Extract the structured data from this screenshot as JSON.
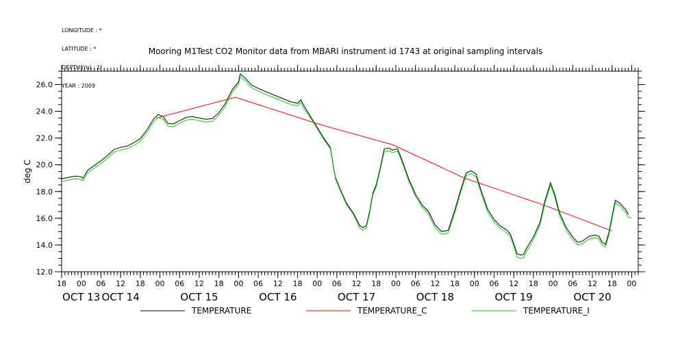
{
  "header": {
    "meta_lines": [
      "LONGITUDE : *",
      "LATITUDE : *",
      "DEPTH (m) : 1",
      "YEAR : 2009"
    ],
    "title": "Mooring M1Test CO2 Monitor data from MBARI instrument id 1743 at original sampling intervals"
  },
  "chart_data": {
    "type": "line",
    "title": "Mooring M1Test CO2 Monitor data from MBARI instrument id 1743 at original sampling intervals",
    "xlabel": "",
    "ylabel": "deg C",
    "ylim": [
      12.0,
      27.0
    ],
    "yticks": [
      12.0,
      14.0,
      16.0,
      18.0,
      20.0,
      22.0,
      24.0,
      26.0
    ],
    "ytick_labels": [
      "12.0",
      "14.0",
      "16.0",
      "18.0",
      "20.0",
      "22.0",
      "24.0",
      "26.0"
    ],
    "xlim_hours": [
      -6,
      170
    ],
    "x_units": "hours since OCT 13 2009 00:00",
    "hour_ticks": [
      {
        "h": -6,
        "label": "18"
      },
      {
        "h": 0,
        "label": "00"
      },
      {
        "h": 6,
        "label": "06"
      },
      {
        "h": 12,
        "label": "12"
      },
      {
        "h": 18,
        "label": "18"
      },
      {
        "h": 24,
        "label": "00"
      },
      {
        "h": 30,
        "label": "06"
      },
      {
        "h": 36,
        "label": "12"
      },
      {
        "h": 42,
        "label": "18"
      },
      {
        "h": 48,
        "label": "00"
      },
      {
        "h": 54,
        "label": "06"
      },
      {
        "h": 60,
        "label": "12"
      },
      {
        "h": 66,
        "label": "18"
      },
      {
        "h": 72,
        "label": "00"
      },
      {
        "h": 78,
        "label": "06"
      },
      {
        "h": 84,
        "label": "12"
      },
      {
        "h": 90,
        "label": "18"
      },
      {
        "h": 96,
        "label": "00"
      },
      {
        "h": 102,
        "label": "06"
      },
      {
        "h": 108,
        "label": "12"
      },
      {
        "h": 114,
        "label": "18"
      },
      {
        "h": 120,
        "label": "00"
      },
      {
        "h": 126,
        "label": "06"
      },
      {
        "h": 132,
        "label": "12"
      },
      {
        "h": 138,
        "label": "18"
      },
      {
        "h": 144,
        "label": "00"
      },
      {
        "h": 150,
        "label": "06"
      },
      {
        "h": 156,
        "label": "12"
      },
      {
        "h": 162,
        "label": "18"
      },
      {
        "h": 168,
        "label": "00"
      }
    ],
    "day_labels": [
      {
        "h": 0,
        "label": "OCT 13"
      },
      {
        "h": 12,
        "label": "OCT 14"
      },
      {
        "h": 36,
        "label": "OCT 15"
      },
      {
        "h": 60,
        "label": "OCT 16"
      },
      {
        "h": 84,
        "label": "OCT 17"
      },
      {
        "h": 108,
        "label": "OCT 18"
      },
      {
        "h": 132,
        "label": "OCT 19"
      },
      {
        "h": 156,
        "label": "OCT 20"
      }
    ],
    "series": [
      {
        "name": "TEMPERATURE",
        "color": "#000000",
        "points": [
          [
            -6,
            18.95
          ],
          [
            -4,
            19.05
          ],
          [
            -2,
            19.15
          ],
          [
            0,
            19.1
          ],
          [
            0.5,
            19.0
          ],
          [
            2,
            19.6
          ],
          [
            4,
            19.95
          ],
          [
            6,
            20.3
          ],
          [
            8,
            20.7
          ],
          [
            10,
            21.15
          ],
          [
            12,
            21.3
          ],
          [
            14,
            21.4
          ],
          [
            16,
            21.65
          ],
          [
            18,
            21.95
          ],
          [
            20,
            22.6
          ],
          [
            22,
            23.4
          ],
          [
            23.5,
            23.75
          ],
          [
            25,
            23.6
          ],
          [
            26.5,
            23.1
          ],
          [
            28,
            23.05
          ],
          [
            30,
            23.3
          ],
          [
            32,
            23.55
          ],
          [
            34,
            23.6
          ],
          [
            36,
            23.5
          ],
          [
            38,
            23.4
          ],
          [
            40,
            23.45
          ],
          [
            42,
            23.9
          ],
          [
            44,
            24.6
          ],
          [
            46,
            25.6
          ],
          [
            48,
            26.2
          ],
          [
            48.5,
            26.8
          ],
          [
            50,
            26.5
          ],
          [
            52,
            25.95
          ],
          [
            55,
            25.6
          ],
          [
            60,
            25.1
          ],
          [
            64,
            24.7
          ],
          [
            66,
            24.6
          ],
          [
            67,
            24.85
          ],
          [
            68,
            24.4
          ],
          [
            70,
            23.6
          ],
          [
            72,
            22.8
          ],
          [
            74,
            22.0
          ],
          [
            76,
            21.3
          ],
          [
            77.5,
            19.1
          ],
          [
            79,
            18.2
          ],
          [
            81,
            17.1
          ],
          [
            83,
            16.4
          ],
          [
            85,
            15.45
          ],
          [
            86,
            15.3
          ],
          [
            87,
            15.45
          ],
          [
            88,
            16.5
          ],
          [
            89,
            17.9
          ],
          [
            90,
            18.5
          ],
          [
            91,
            19.5
          ],
          [
            92.5,
            21.2
          ],
          [
            94,
            21.25
          ],
          [
            95,
            21.1
          ],
          [
            96.5,
            21.2
          ],
          [
            98,
            20.3
          ],
          [
            100,
            18.9
          ],
          [
            102,
            17.8
          ],
          [
            104,
            17.0
          ],
          [
            106,
            16.5
          ],
          [
            108,
            15.5
          ],
          [
            110,
            15.0
          ],
          [
            112,
            15.1
          ],
          [
            114,
            16.6
          ],
          [
            116,
            18.3
          ],
          [
            117.5,
            19.4
          ],
          [
            119,
            19.55
          ],
          [
            120.5,
            19.3
          ],
          [
            122,
            18.1
          ],
          [
            124,
            16.7
          ],
          [
            126,
            15.9
          ],
          [
            128,
            15.4
          ],
          [
            130,
            15.1
          ],
          [
            131,
            14.8
          ],
          [
            132,
            14.1
          ],
          [
            133,
            13.35
          ],
          [
            134,
            13.25
          ],
          [
            135,
            13.3
          ],
          [
            136,
            13.8
          ],
          [
            138,
            14.6
          ],
          [
            140,
            15.7
          ],
          [
            141.5,
            17.3
          ],
          [
            143.2,
            18.65
          ],
          [
            144.5,
            17.8
          ],
          [
            146,
            16.4
          ],
          [
            148,
            15.3
          ],
          [
            150,
            14.6
          ],
          [
            151.5,
            14.2
          ],
          [
            153,
            14.3
          ],
          [
            155,
            14.65
          ],
          [
            157,
            14.75
          ],
          [
            158,
            14.65
          ],
          [
            159,
            14.2
          ],
          [
            160,
            14.05
          ],
          [
            161,
            14.9
          ],
          [
            163,
            17.35
          ],
          [
            164.5,
            17.1
          ],
          [
            166,
            16.7
          ],
          [
            167,
            16.3
          ]
        ]
      },
      {
        "name": "TEMPERATURE_C",
        "color": "#ff0000",
        "points": [
          [
            23,
            23.5
          ],
          [
            47,
            25.05
          ],
          [
            73,
            23.0
          ],
          [
            95,
            21.5
          ],
          [
            117,
            19.0
          ],
          [
            141,
            17.0
          ],
          [
            162,
            15.05
          ]
        ]
      },
      {
        "name": "TEMPERATURE_I",
        "color": "#00dd00",
        "points": [
          [
            -6,
            18.75
          ],
          [
            -4,
            18.85
          ],
          [
            -2,
            18.95
          ],
          [
            0,
            18.9
          ],
          [
            0.5,
            18.8
          ],
          [
            2,
            19.4
          ],
          [
            4,
            19.75
          ],
          [
            6,
            20.1
          ],
          [
            8,
            20.5
          ],
          [
            10,
            20.95
          ],
          [
            12,
            21.1
          ],
          [
            14,
            21.2
          ],
          [
            16,
            21.45
          ],
          [
            18,
            21.75
          ],
          [
            20,
            22.4
          ],
          [
            22,
            23.2
          ],
          [
            23.5,
            23.55
          ],
          [
            25,
            23.4
          ],
          [
            26.5,
            22.9
          ],
          [
            28,
            22.85
          ],
          [
            30,
            23.1
          ],
          [
            32,
            23.35
          ],
          [
            34,
            23.4
          ],
          [
            36,
            23.3
          ],
          [
            38,
            23.2
          ],
          [
            40,
            23.25
          ],
          [
            42,
            23.7
          ],
          [
            44,
            24.4
          ],
          [
            46,
            25.4
          ],
          [
            48,
            26.0
          ],
          [
            48.5,
            26.6
          ],
          [
            50,
            26.3
          ],
          [
            52,
            25.75
          ],
          [
            55,
            25.4
          ],
          [
            60,
            24.9
          ],
          [
            64,
            24.5
          ],
          [
            66,
            24.4
          ],
          [
            67,
            24.65
          ],
          [
            68,
            24.2
          ],
          [
            70,
            23.5
          ],
          [
            72,
            22.7
          ],
          [
            74,
            21.9
          ],
          [
            76,
            21.2
          ],
          [
            77.5,
            19.0
          ],
          [
            79,
            18.1
          ],
          [
            81,
            17.0
          ],
          [
            83,
            16.3
          ],
          [
            85,
            15.25
          ],
          [
            86,
            15.1
          ],
          [
            87,
            15.3
          ],
          [
            88,
            16.35
          ],
          [
            89,
            17.75
          ],
          [
            90,
            18.35
          ],
          [
            91,
            19.35
          ],
          [
            92.5,
            21.0
          ],
          [
            94,
            21.05
          ],
          [
            95,
            20.9
          ],
          [
            96.5,
            21.05
          ],
          [
            98,
            20.15
          ],
          [
            100,
            18.75
          ],
          [
            102,
            17.65
          ],
          [
            104,
            16.85
          ],
          [
            106,
            16.3
          ],
          [
            108,
            15.3
          ],
          [
            110,
            14.8
          ],
          [
            112,
            14.9
          ],
          [
            114,
            16.4
          ],
          [
            116,
            18.1
          ],
          [
            117.5,
            19.2
          ],
          [
            119,
            19.35
          ],
          [
            120.5,
            19.1
          ],
          [
            122,
            17.9
          ],
          [
            124,
            16.5
          ],
          [
            126,
            15.7
          ],
          [
            128,
            15.2
          ],
          [
            130,
            14.9
          ],
          [
            131,
            14.6
          ],
          [
            132,
            13.9
          ],
          [
            133,
            13.1
          ],
          [
            134,
            13.0
          ],
          [
            135,
            13.05
          ],
          [
            136,
            13.55
          ],
          [
            138,
            14.4
          ],
          [
            140,
            15.5
          ],
          [
            141.5,
            17.1
          ],
          [
            143.2,
            18.45
          ],
          [
            144.5,
            17.6
          ],
          [
            146,
            16.2
          ],
          [
            148,
            15.1
          ],
          [
            150,
            14.4
          ],
          [
            151.5,
            14.0
          ],
          [
            153,
            14.1
          ],
          [
            155,
            14.45
          ],
          [
            157,
            14.55
          ],
          [
            158,
            14.45
          ],
          [
            159,
            14.0
          ],
          [
            160,
            13.85
          ],
          [
            161,
            14.7
          ],
          [
            163,
            17.15
          ],
          [
            164.5,
            16.9
          ],
          [
            166,
            16.5
          ],
          [
            167,
            16.1
          ],
          [
            168,
            16.0
          ]
        ]
      }
    ]
  }
}
